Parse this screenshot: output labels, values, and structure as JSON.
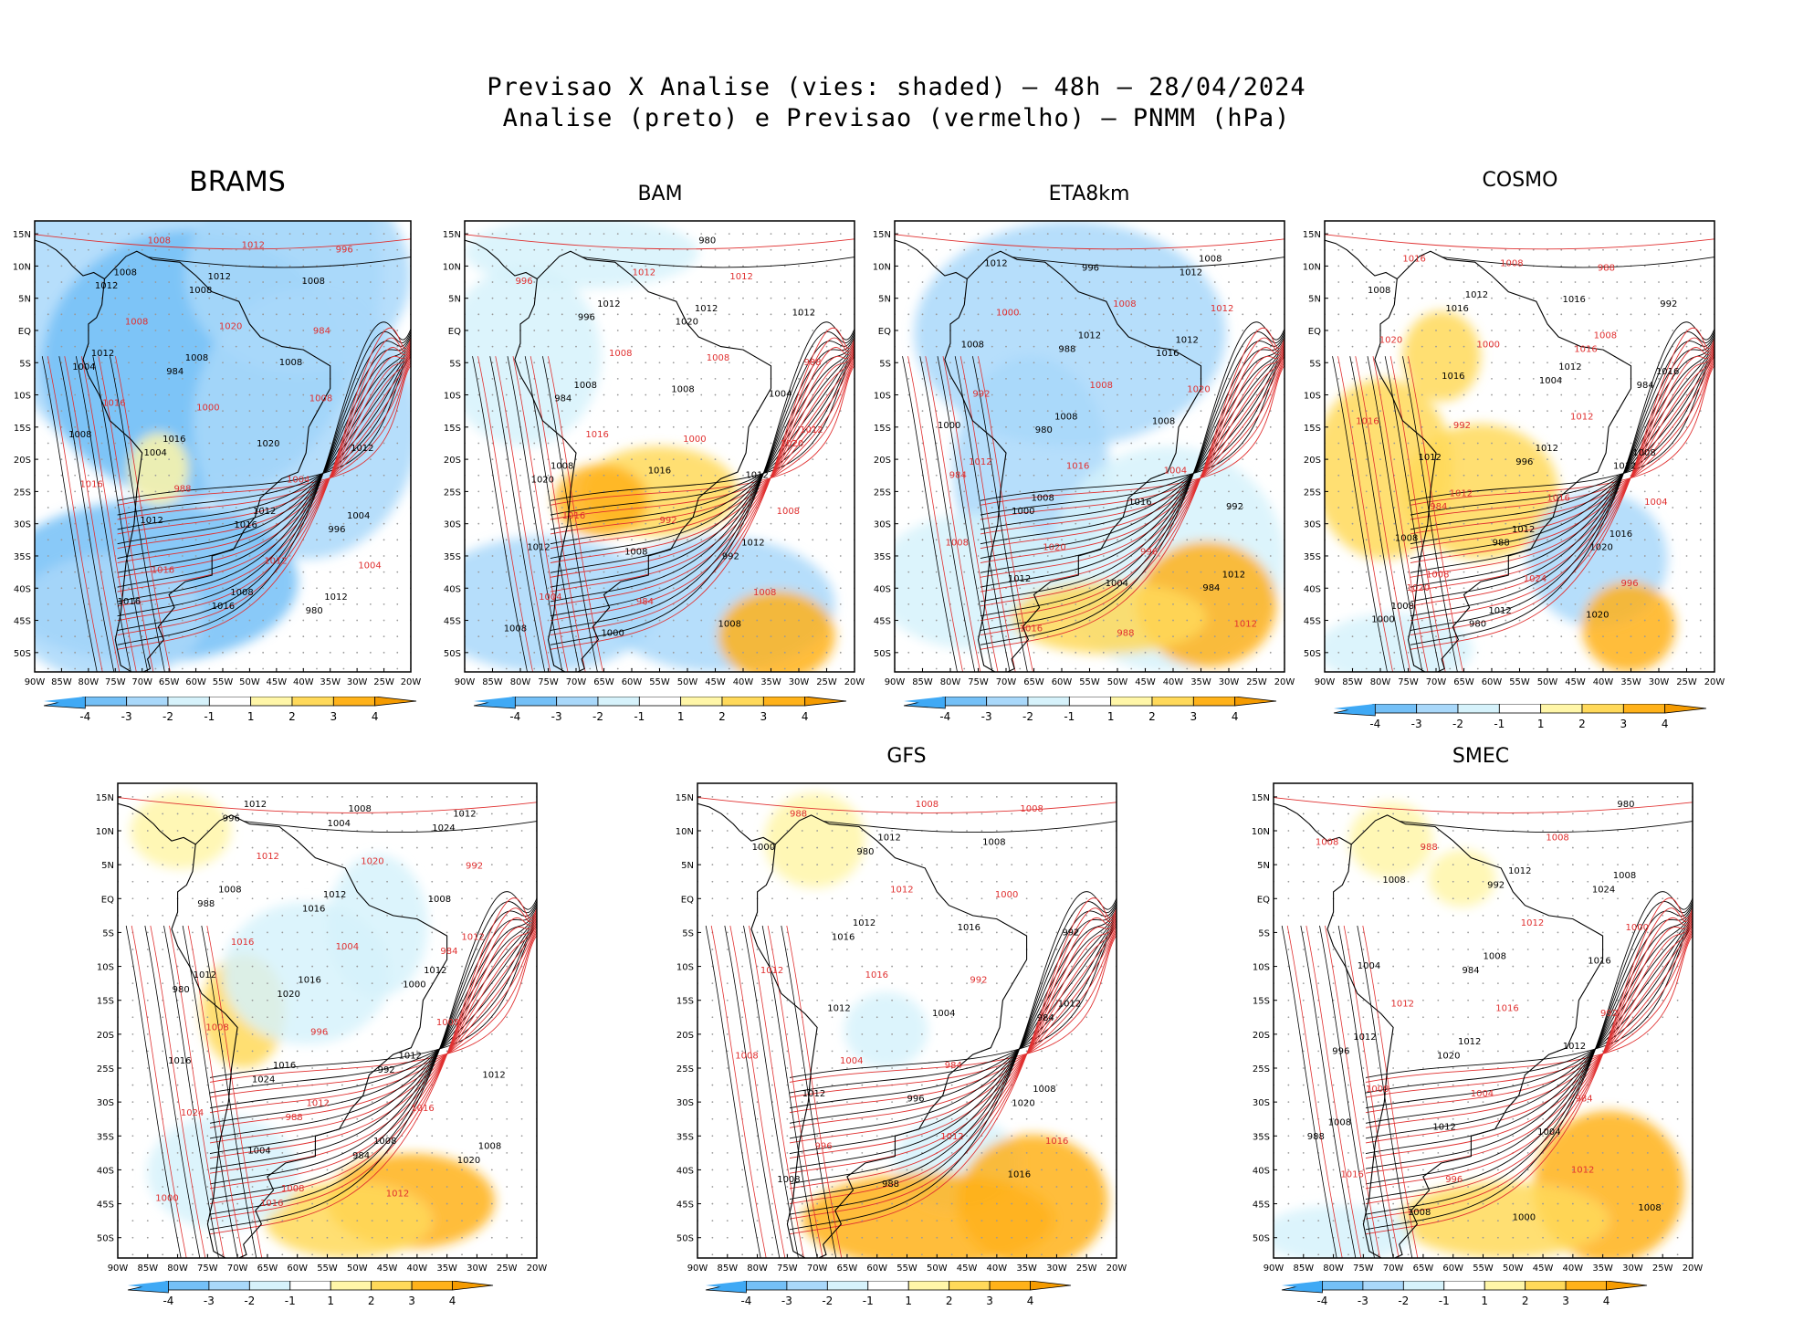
{
  "title_line1": "Previsao X Analise (vies: shaded) – 48h – 28/04/2024",
  "title_line2": "Analise (preto) e Previsao (vermelho) – PNMM (hPa)",
  "lat_labels": [
    "15N",
    "10N",
    "5N",
    "EQ",
    "5S",
    "10S",
    "15S",
    "20S",
    "25S",
    "30S",
    "35S",
    "40S",
    "45S",
    "50S"
  ],
  "lon_labels": [
    "90W",
    "85W",
    "80W",
    "75W",
    "70W",
    "65W",
    "60W",
    "55W",
    "50W",
    "45W",
    "40W",
    "35W",
    "30W",
    "25W",
    "20W"
  ],
  "colorbar": {
    "labels": [
      "-4",
      "-3",
      "-2",
      "-1",
      "1",
      "2",
      "3",
      "4"
    ],
    "colors": [
      "#3fa9f5",
      "#74c0f7",
      "#a9d8fa",
      "#d6f2fb",
      "#ffffff",
      "#fff6a8",
      "#ffd95a",
      "#ffb21a",
      "#f59b00"
    ]
  },
  "colors": {
    "analysis_contour": "#000000",
    "forecast_contour": "#e03030",
    "grid_dots": "#9a9a9a",
    "coast": "#000000"
  },
  "panels": [
    {
      "name": "BRAMS",
      "labels_black": [
        "1008",
        "1012",
        "1012",
        "1008",
        "1008",
        "1012",
        "1004",
        "1008",
        "1012",
        "1016",
        "1008",
        "1012",
        "1008",
        "1016",
        "1020",
        "1012",
        "1016",
        "1004",
        "1016",
        "1012",
        "1008",
        "996",
        "984",
        "980",
        "1004"
      ],
      "labels_red": [
        "1008",
        "1008",
        "1004",
        "1008",
        "1012",
        "1016",
        "1012",
        "1016",
        "1020",
        "1004",
        "1000",
        "996",
        "988",
        "984",
        "1016"
      ],
      "bias_blobs": [
        {
          "x": 40,
          "y": 12,
          "rx": 52,
          "ry": 46,
          "v": -2
        },
        {
          "x": 42,
          "y": 32,
          "rx": 40,
          "ry": 30,
          "v": -3
        },
        {
          "x": 70,
          "y": 12,
          "rx": 30,
          "ry": 22,
          "v": -2
        },
        {
          "x": 72,
          "y": 45,
          "rx": 30,
          "ry": 30,
          "v": -2
        },
        {
          "x": 30,
          "y": 80,
          "rx": 40,
          "ry": 18,
          "v": -3
        },
        {
          "x": 20,
          "y": 88,
          "rx": 25,
          "ry": 14,
          "v": -2
        },
        {
          "x": 33,
          "y": 55,
          "rx": 8,
          "ry": 8,
          "v": 1
        }
      ]
    },
    {
      "name": "BAM",
      "labels_black": [
        "1012",
        "1012",
        "1008",
        "1008",
        "1008",
        "1012",
        "1012",
        "1008",
        "1008",
        "1016",
        "1012",
        "1008",
        "1004",
        "1000",
        "1012",
        "996",
        "992",
        "984",
        "980",
        "1020",
        "1020"
      ],
      "labels_red": [
        "1012",
        "1012",
        "1008",
        "1008",
        "1008",
        "1016",
        "1012",
        "1016",
        "1008",
        "1004",
        "1000",
        "996",
        "992",
        "988",
        "984",
        "1020"
      ],
      "bias_blobs": [
        {
          "x": 30,
          "y": 7,
          "rx": 30,
          "ry": 8,
          "v": -1
        },
        {
          "x": 15,
          "y": 30,
          "rx": 20,
          "ry": 20,
          "v": -1
        },
        {
          "x": 50,
          "y": 60,
          "rx": 20,
          "ry": 10,
          "v": 2
        },
        {
          "x": 35,
          "y": 62,
          "rx": 12,
          "ry": 8,
          "v": 3
        },
        {
          "x": 20,
          "y": 85,
          "rx": 30,
          "ry": 15,
          "v": -2
        },
        {
          "x": 65,
          "y": 85,
          "rx": 30,
          "ry": 15,
          "v": -2
        },
        {
          "x": 80,
          "y": 92,
          "rx": 15,
          "ry": 10,
          "v": 3
        }
      ]
    },
    {
      "name": "ETA8km",
      "labels_black": [
        "1012",
        "1012",
        "1008",
        "1008",
        "1008",
        "1012",
        "1012",
        "1008",
        "1012",
        "1016",
        "1008",
        "1004",
        "1000",
        "996",
        "992",
        "988",
        "984",
        "980",
        "1012",
        "1000",
        "1016"
      ],
      "labels_red": [
        "1012",
        "1008",
        "1008",
        "1008",
        "1012",
        "1016",
        "1012",
        "1020",
        "1020",
        "1016",
        "1004",
        "1000",
        "996",
        "992",
        "988",
        "984"
      ],
      "bias_blobs": [
        {
          "x": 45,
          "y": 25,
          "rx": 40,
          "ry": 25,
          "v": -2
        },
        {
          "x": 35,
          "y": 55,
          "rx": 20,
          "ry": 25,
          "v": -2
        },
        {
          "x": 70,
          "y": 75,
          "rx": 30,
          "ry": 25,
          "v": -1
        },
        {
          "x": 20,
          "y": 80,
          "rx": 25,
          "ry": 15,
          "v": -1
        },
        {
          "x": 80,
          "y": 85,
          "rx": 18,
          "ry": 14,
          "v": 3
        },
        {
          "x": 55,
          "y": 88,
          "rx": 25,
          "ry": 8,
          "v": 2
        }
      ]
    },
    {
      "name": "COSMO",
      "labels_black": [
        "1012",
        "1008",
        "1012",
        "1008",
        "1012",
        "1016",
        "1012",
        "1008",
        "1012",
        "1016",
        "1016",
        "1020",
        "1012",
        "1016",
        "1008",
        "1004",
        "1000",
        "996",
        "992",
        "988",
        "984",
        "980",
        "1012",
        "1016",
        "1020"
      ],
      "labels_red": [
        "1012",
        "1008",
        "1008",
        "1012",
        "1016",
        "1016",
        "1020",
        "1024",
        "1016",
        "1008",
        "1004",
        "1000",
        "996",
        "992",
        "988",
        "984",
        "1016",
        "1020"
      ],
      "bias_blobs": [
        {
          "x": 15,
          "y": 55,
          "rx": 18,
          "ry": 20,
          "v": 2
        },
        {
          "x": 40,
          "y": 60,
          "rx": 20,
          "ry": 15,
          "v": 2
        },
        {
          "x": 30,
          "y": 30,
          "rx": 10,
          "ry": 10,
          "v": 2
        },
        {
          "x": 70,
          "y": 75,
          "rx": 18,
          "ry": 15,
          "v": -2
        },
        {
          "x": 78,
          "y": 90,
          "rx": 12,
          "ry": 10,
          "v": 3
        },
        {
          "x": 18,
          "y": 95,
          "rx": 20,
          "ry": 8,
          "v": -1
        }
      ]
    },
    {
      "name": "",
      "labels_black": [
        "1012",
        "1012",
        "1012",
        "1008",
        "1008",
        "1012",
        "1008",
        "1016",
        "1012",
        "1008",
        "1016",
        "1012",
        "1016",
        "1008",
        "1004",
        "1000",
        "996",
        "992",
        "988",
        "984",
        "980",
        "1004",
        "1012",
        "1016",
        "1020",
        "1020",
        "1024",
        "1024"
      ],
      "labels_red": [
        "1012",
        "1012",
        "1008",
        "1008",
        "1012",
        "1016",
        "1016",
        "1012",
        "1008",
        "1020",
        "1024",
        "1004",
        "1000",
        "996",
        "992",
        "988",
        "984",
        "1016"
      ],
      "bias_blobs": [
        {
          "x": 15,
          "y": 10,
          "rx": 12,
          "ry": 8,
          "v": 1
        },
        {
          "x": 30,
          "y": 48,
          "rx": 10,
          "ry": 12,
          "v": 2
        },
        {
          "x": 45,
          "y": 40,
          "rx": 20,
          "ry": 15,
          "v": -1
        },
        {
          "x": 62,
          "y": 30,
          "rx": 12,
          "ry": 15,
          "v": -1
        },
        {
          "x": 70,
          "y": 88,
          "rx": 20,
          "ry": 10,
          "v": 3
        },
        {
          "x": 55,
          "y": 92,
          "rx": 20,
          "ry": 8,
          "v": 2
        },
        {
          "x": 25,
          "y": 82,
          "rx": 18,
          "ry": 12,
          "v": -1
        }
      ]
    },
    {
      "name": "GFS",
      "labels_black": [
        "1012",
        "1012",
        "1008",
        "1012",
        "1016",
        "1012",
        "1008",
        "1012",
        "1016",
        "1008",
        "1004",
        "1000",
        "996",
        "992",
        "988",
        "984",
        "980",
        "1020",
        "1016"
      ],
      "labels_red": [
        "1012",
        "1012",
        "1008",
        "1008",
        "1012",
        "1016",
        "1016",
        "1008",
        "1004",
        "1000",
        "996",
        "992",
        "988",
        "984"
      ],
      "bias_blobs": [
        {
          "x": 28,
          "y": 12,
          "rx": 12,
          "ry": 10,
          "v": 1
        },
        {
          "x": 45,
          "y": 52,
          "rx": 10,
          "ry": 8,
          "v": -1
        },
        {
          "x": 62,
          "y": 80,
          "rx": 15,
          "ry": 10,
          "v": -1
        },
        {
          "x": 55,
          "y": 92,
          "rx": 30,
          "ry": 10,
          "v": 3
        },
        {
          "x": 80,
          "y": 88,
          "rx": 18,
          "ry": 14,
          "v": 3
        }
      ]
    },
    {
      "name": "SMEC",
      "labels_black": [
        "1012",
        "1012",
        "1008",
        "1008",
        "1008",
        "1012",
        "1008",
        "1012",
        "1016",
        "1008",
        "1012",
        "1008",
        "1004",
        "1004",
        "1000",
        "996",
        "992",
        "988",
        "984",
        "980",
        "1020",
        "1024"
      ],
      "labels_red": [
        "1012",
        "1012",
        "1008",
        "1008",
        "1012",
        "1016",
        "1016",
        "1008",
        "1004",
        "1000",
        "996",
        "992",
        "988",
        "984"
      ],
      "bias_blobs": [
        {
          "x": 28,
          "y": 12,
          "rx": 10,
          "ry": 8,
          "v": 1
        },
        {
          "x": 45,
          "y": 20,
          "rx": 8,
          "ry": 6,
          "v": 1
        },
        {
          "x": 80,
          "y": 85,
          "rx": 18,
          "ry": 16,
          "v": 3
        },
        {
          "x": 55,
          "y": 92,
          "rx": 25,
          "ry": 8,
          "v": 2
        },
        {
          "x": 15,
          "y": 95,
          "rx": 18,
          "ry": 6,
          "v": -1
        }
      ]
    }
  ]
}
